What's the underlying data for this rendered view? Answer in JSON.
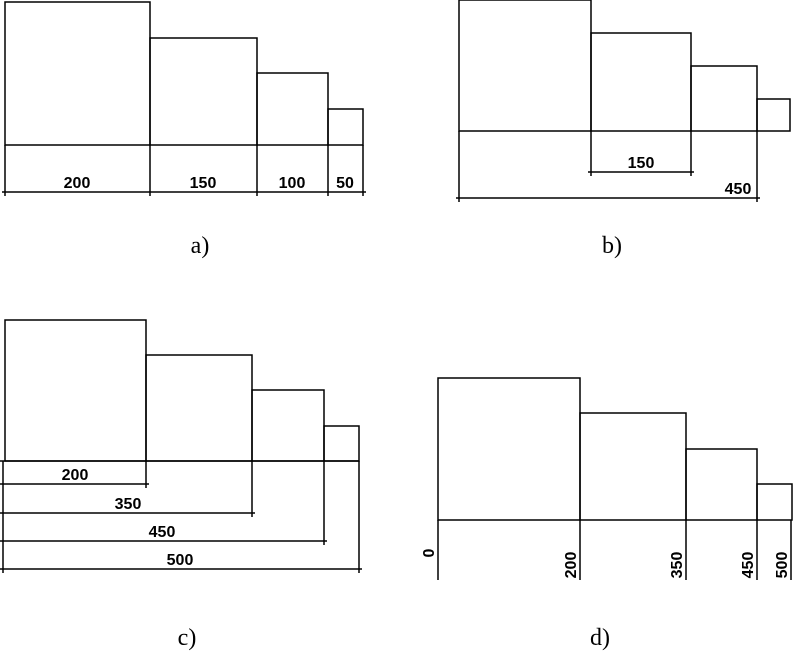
{
  "panels": [
    {
      "caption": "a)",
      "dimensions": [
        "200",
        "150",
        "100",
        "50"
      ]
    },
    {
      "caption": "b)",
      "dimensions": [
        "150",
        "450"
      ]
    },
    {
      "caption": "c)",
      "dimensions": [
        "200",
        "350",
        "450",
        "500"
      ]
    },
    {
      "caption": "d)",
      "dimensions": [
        "0",
        "200",
        "350",
        "450",
        "500"
      ]
    }
  ]
}
